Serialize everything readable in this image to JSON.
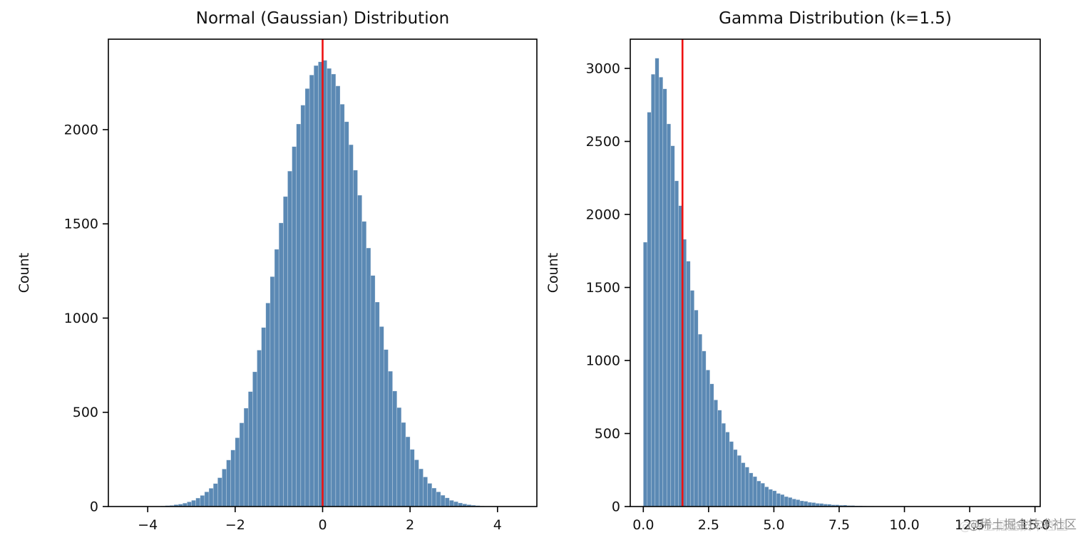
{
  "watermark": "@稀土掘金技术社区",
  "chart_data": [
    {
      "type": "bar",
      "subtype": "histogram",
      "title": "Normal (Gaussian) Distribution",
      "xlabel": "",
      "ylabel": "Count",
      "bar_color": "#5b89b4",
      "bar_edge_color": "rgba(255,255,255,0.45)",
      "vline_x": 0,
      "vline_color": "#ee1111",
      "xlim": [
        -4.9,
        4.9
      ],
      "ylim": [
        0,
        2480
      ],
      "grid": false,
      "legend": "none",
      "bin_start": -4.5,
      "bin_width": 0.1,
      "xticks": [
        {
          "v": -4,
          "label": "−4"
        },
        {
          "v": -2,
          "label": "−2"
        },
        {
          "v": 0,
          "label": "0"
        },
        {
          "v": 2,
          "label": "2"
        },
        {
          "v": 4,
          "label": "4"
        }
      ],
      "yticks": [
        {
          "v": 0,
          "label": "0"
        },
        {
          "v": 500,
          "label": "500"
        },
        {
          "v": 1000,
          "label": "1000"
        },
        {
          "v": 1500,
          "label": "1500"
        },
        {
          "v": 2000,
          "label": "2000"
        }
      ],
      "values": [
        0,
        0,
        1,
        0,
        1,
        1,
        2,
        2,
        3,
        5,
        6,
        10,
        13,
        18,
        25,
        33,
        45,
        59,
        78,
        97,
        122,
        153,
        199,
        247,
        300,
        365,
        444,
        522,
        610,
        715,
        830,
        950,
        1080,
        1220,
        1365,
        1505,
        1645,
        1780,
        1910,
        2030,
        2130,
        2218,
        2290,
        2340,
        2360,
        2368,
        2325,
        2295,
        2232,
        2135,
        2042,
        1920,
        1785,
        1652,
        1513,
        1372,
        1226,
        1085,
        955,
        833,
        718,
        613,
        525,
        446,
        370,
        303,
        248,
        200,
        157,
        123,
        98,
        78,
        60,
        46,
        33,
        26,
        19,
        14,
        10,
        7,
        5,
        3,
        2,
        2,
        1,
        1,
        0,
        0,
        1,
        0
      ]
    },
    {
      "type": "bar",
      "subtype": "histogram",
      "title": "Gamma Distribution (k=1.5)",
      "xlabel": "",
      "ylabel": "Count",
      "bar_color": "#5b89b4",
      "bar_edge_color": "rgba(255,255,255,0.45)",
      "vline_x": 1.5,
      "vline_color": "#ee1111",
      "xlim": [
        -0.5,
        15.2
      ],
      "ylim": [
        0,
        3200
      ],
      "grid": false,
      "legend": "none",
      "bin_start": 0,
      "bin_width": 0.15,
      "xticks": [
        {
          "v": 0,
          "label": "0.0"
        },
        {
          "v": 2.5,
          "label": "2.5"
        },
        {
          "v": 5,
          "label": "5.0"
        },
        {
          "v": 7.5,
          "label": "7.5"
        },
        {
          "v": 10,
          "label": "10.0"
        },
        {
          "v": 12.5,
          "label": "12.5"
        },
        {
          "v": 15,
          "label": "15.0"
        }
      ],
      "yticks": [
        {
          "v": 0,
          "label": "0"
        },
        {
          "v": 500,
          "label": "500"
        },
        {
          "v": 1000,
          "label": "1000"
        },
        {
          "v": 1500,
          "label": "1500"
        },
        {
          "v": 2000,
          "label": "2000"
        },
        {
          "v": 2500,
          "label": "2500"
        },
        {
          "v": 3000,
          "label": "3000"
        }
      ],
      "values": [
        1810,
        2700,
        2960,
        3070,
        2940,
        2860,
        2620,
        2470,
        2230,
        2060,
        1830,
        1680,
        1480,
        1345,
        1180,
        1065,
        935,
        840,
        730,
        660,
        570,
        510,
        445,
        390,
        350,
        300,
        270,
        230,
        205,
        175,
        160,
        135,
        118,
        108,
        90,
        82,
        68,
        62,
        52,
        47,
        39,
        36,
        29,
        27,
        22,
        21,
        17,
        16,
        12,
        12,
        9,
        10,
        7,
        7,
        5,
        5,
        4,
        3,
        3,
        2,
        2,
        1,
        1,
        1,
        0,
        1,
        0,
        0
      ]
    }
  ]
}
